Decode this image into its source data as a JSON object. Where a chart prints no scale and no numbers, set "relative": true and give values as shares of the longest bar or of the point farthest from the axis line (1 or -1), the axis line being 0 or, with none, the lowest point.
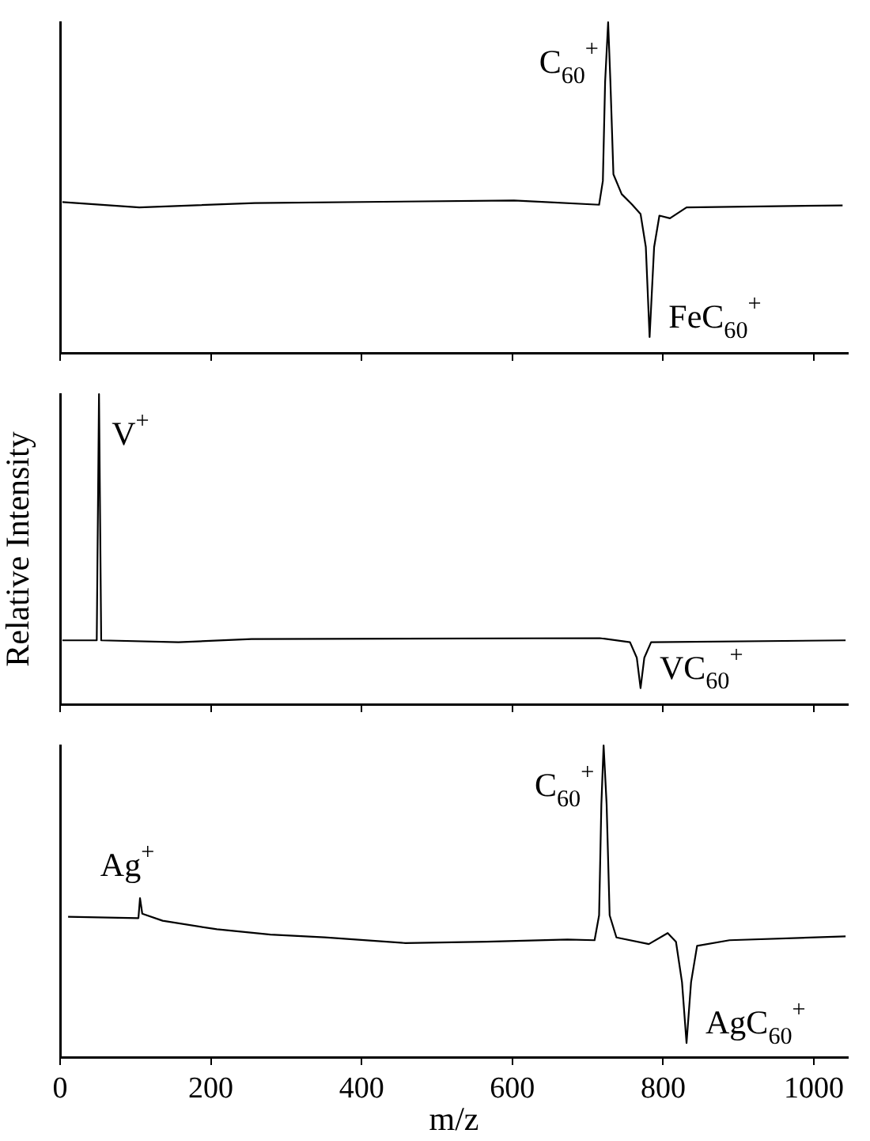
{
  "chart_data": [
    {
      "type": "line",
      "relative": true,
      "color": "#000000",
      "marker": "none",
      "tick_labels": false,
      "xlim": [
        0,
        1045
      ],
      "xticks": [
        0,
        200,
        400,
        600,
        800,
        1000
      ],
      "x": [
        3,
        105,
        258,
        602,
        715,
        720,
        723,
        727,
        730,
        734,
        745,
        759,
        770,
        777,
        782,
        788,
        795,
        809,
        831,
        1038
      ],
      "values": [
        0.456,
        0.44,
        0.453,
        0.461,
        0.448,
        0.52,
        0.82,
        1,
        0.82,
        0.54,
        0.48,
        0.448,
        0.42,
        0.32,
        0.048,
        0.32,
        0.415,
        0.407,
        0.44,
        0.446
      ],
      "annotations": [
        {
          "text": "C$_{60}$$^{+}$",
          "x": 727,
          "y": 1
        },
        {
          "text": "FeC$_{60}$$^{+}$",
          "x": 782,
          "y": 0.048
        }
      ]
    },
    {
      "type": "line",
      "relative": true,
      "color": "#000000",
      "marker": "none",
      "tick_labels": false,
      "xlim": [
        0,
        1045
      ],
      "xticks": [
        0,
        200,
        400,
        600,
        800,
        1000
      ],
      "ylabel": "Relative Intensity",
      "x": [
        3,
        48.6,
        51.6,
        54.5,
        157,
        254,
        716,
        756,
        765,
        770,
        775,
        784,
        1042
      ],
      "values": [
        0.206,
        0.206,
        1,
        0.206,
        0.2,
        0.21,
        0.213,
        0.2,
        0.15,
        0.052,
        0.15,
        0.2,
        0.206
      ],
      "annotations": [
        {
          "text": "V$^{+}$",
          "x": 51.6,
          "y": 1
        },
        {
          "text": "VC$_{60}$$^{+}$",
          "x": 770,
          "y": 0.052
        }
      ]
    },
    {
      "type": "line",
      "relative": true,
      "color": "#000000",
      "marker": "none",
      "tick_labels": "x",
      "xlim": [
        0,
        1045
      ],
      "xticks": [
        0,
        200,
        400,
        600,
        800,
        1000
      ],
      "xlabel": "m/z",
      "x": [
        10.6,
        103.9,
        106,
        109,
        136,
        208,
        279,
        351,
        458,
        566,
        673,
        709,
        715,
        718,
        721,
        725,
        729,
        738,
        781,
        806,
        817,
        825,
        831,
        837,
        845,
        888,
        1042
      ],
      "values": [
        0.45,
        0.446,
        0.51,
        0.46,
        0.4375,
        0.41,
        0.393,
        0.384,
        0.366,
        0.37,
        0.377,
        0.375,
        0.455,
        0.81,
        1,
        0.81,
        0.455,
        0.384,
        0.3625,
        0.398,
        0.37,
        0.24,
        0.045,
        0.24,
        0.357,
        0.375,
        0.3875
      ],
      "annotations": [
        {
          "text": "Ag$^{+}$",
          "x": 106,
          "y": 0.51
        },
        {
          "text": "C$_{60}$$^{+}$",
          "x": 721,
          "y": 1
        },
        {
          "text": "AgC$_{60}$$^{+}$",
          "x": 831,
          "y": 0.045
        }
      ]
    }
  ]
}
